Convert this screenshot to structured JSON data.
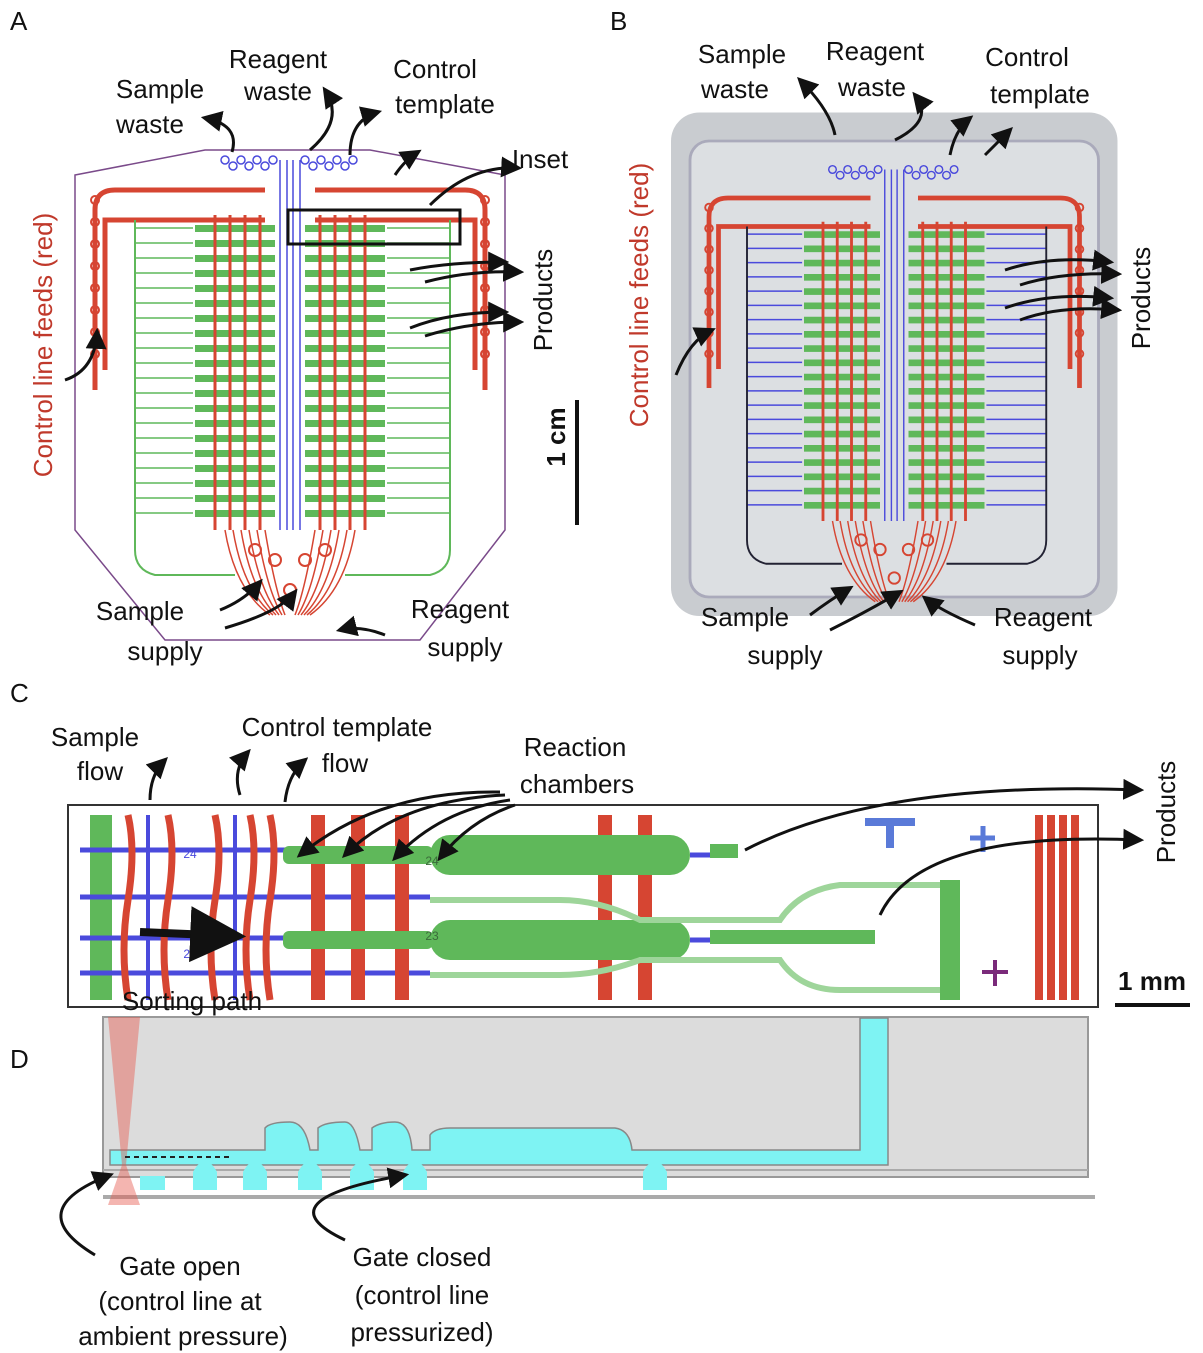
{
  "panel_a": {
    "letter": "A",
    "reagent_waste": [
      "Reagent",
      "waste"
    ],
    "sample_waste": [
      "Sample",
      "waste"
    ],
    "control_template": [
      "Control",
      "template"
    ],
    "inset": "Inset",
    "control_line_feeds": "Control line feeds (red)",
    "products": "Products",
    "scale": "1 cm",
    "sample_supply": [
      "Sample",
      "supply"
    ],
    "reagent_supply": [
      "Reagent",
      "supply"
    ]
  },
  "panel_b": {
    "letter": "B",
    "sample_waste": [
      "Sample",
      "waste"
    ],
    "reagent_waste": [
      "Reagent",
      "waste"
    ],
    "control_template": [
      "Control",
      "template"
    ],
    "control_line_feeds": "Control line feeds (red)",
    "products": "Products",
    "sample_supply": [
      "Sample",
      "supply"
    ],
    "reagent_supply": [
      "Reagent",
      "supply"
    ]
  },
  "panel_c": {
    "letter": "C",
    "sample_flow": [
      "Sample",
      "flow"
    ],
    "control_template_flow": [
      "Control template",
      "flow"
    ],
    "reaction_chambers": [
      "Reaction",
      "chambers"
    ],
    "products": "Products",
    "scale": "1 mm",
    "sorting_path": "Sorting path",
    "row_labels": [
      "24",
      "23"
    ]
  },
  "panel_d": {
    "letter": "D",
    "gate_open": [
      "Gate open",
      "(control line at",
      "ambient pressure)"
    ],
    "gate_closed": [
      "Gate closed",
      "(control line",
      "pressurized)"
    ]
  }
}
